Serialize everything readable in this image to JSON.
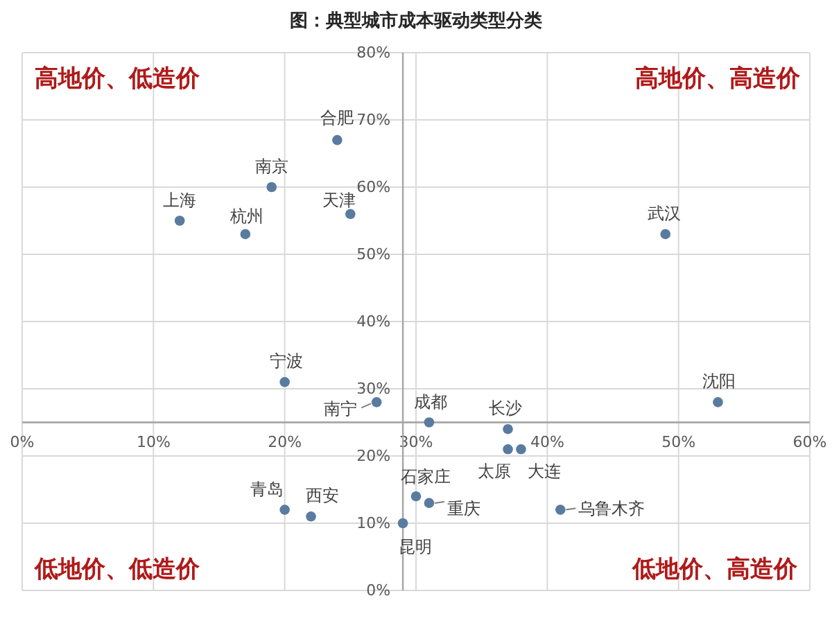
{
  "chart_data": {
    "type": "scatter",
    "title": "图：典型城市成本驱动类型分类",
    "series": [
      {
        "name": "上海",
        "color": "#5a7ba0",
        "x": [
          12
        ],
        "values": [
          55
        ]
      },
      {
        "name": "杭州",
        "color": "#5a7ba0",
        "x": [
          17
        ],
        "values": [
          53
        ]
      },
      {
        "name": "南京",
        "color": "#5a7ba0",
        "x": [
          19
        ],
        "values": [
          60
        ]
      },
      {
        "name": "合肥",
        "color": "#5a7ba0",
        "x": [
          24
        ],
        "values": [
          67
        ]
      },
      {
        "name": "天津",
        "color": "#5a7ba0",
        "x": [
          25
        ],
        "values": [
          56
        ]
      },
      {
        "name": "宁波",
        "color": "#5a7ba0",
        "x": [
          20
        ],
        "values": [
          31
        ]
      },
      {
        "name": "南宁",
        "color": "#5a7ba0",
        "x": [
          27
        ],
        "values": [
          28
        ]
      },
      {
        "name": "成都",
        "color": "#5a7ba0",
        "x": [
          31
        ],
        "values": [
          25
        ]
      },
      {
        "name": "长沙",
        "color": "#5a7ba0",
        "x": [
          37
        ],
        "values": [
          24
        ]
      },
      {
        "name": "武汉",
        "color": "#5a7ba0",
        "x": [
          49
        ],
        "values": [
          53
        ]
      },
      {
        "name": "沈阳",
        "color": "#5a7ba0",
        "x": [
          53
        ],
        "values": [
          28
        ]
      },
      {
        "name": "太原",
        "color": "#5a7ba0",
        "x": [
          37
        ],
        "values": [
          21
        ]
      },
      {
        "name": "大连",
        "color": "#5a7ba0",
        "x": [
          38
        ],
        "values": [
          21
        ]
      },
      {
        "name": "石家庄",
        "color": "#5a7ba0",
        "x": [
          30
        ],
        "values": [
          14
        ]
      },
      {
        "name": "重庆",
        "color": "#5a7ba0",
        "x": [
          31
        ],
        "values": [
          13
        ]
      },
      {
        "name": "昆明",
        "color": "#5a7ba0",
        "x": [
          29
        ],
        "values": [
          10
        ]
      },
      {
        "name": "乌鲁木齐",
        "color": "#5a7ba0",
        "x": [
          41
        ],
        "values": [
          12
        ]
      },
      {
        "name": "青岛",
        "color": "#5a7ba0",
        "x": [
          20
        ],
        "values": [
          12
        ]
      },
      {
        "name": "西安",
        "color": "#5a7ba0",
        "x": [
          22
        ],
        "values": [
          11
        ]
      }
    ],
    "xlim": [
      0,
      60
    ],
    "xticks": [
      {
        "value": 0,
        "label": "0%"
      },
      {
        "value": 10,
        "label": "10%"
      },
      {
        "value": 20,
        "label": "20%"
      },
      {
        "value": 30,
        "label": "30%"
      },
      {
        "value": 40,
        "label": "40%"
      },
      {
        "value": 50,
        "label": "50%"
      },
      {
        "value": 60,
        "label": "60%"
      }
    ],
    "ylim": [
      0,
      80
    ],
    "yticks": [
      {
        "value": 0,
        "label": "0%"
      },
      {
        "value": 10,
        "label": "10%"
      },
      {
        "value": 20,
        "label": "20%"
      },
      {
        "value": 30,
        "label": "30%"
      },
      {
        "value": 40,
        "label": "40%"
      },
      {
        "value": 50,
        "label": "50%"
      },
      {
        "value": 60,
        "label": "60%"
      },
      {
        "value": 70,
        "label": "70%"
      },
      {
        "value": 80,
        "label": "80%"
      }
    ],
    "grid": true,
    "marker": "circle",
    "legend": false,
    "ref_lines": [
      {
        "axis": "x",
        "value": 29,
        "color": "#a6a6a6"
      },
      {
        "axis": "y",
        "value": 25,
        "color": "#a6a6a6"
      }
    ],
    "annotations": [
      "高地价、低造价",
      "高地价、高造价",
      "低地价、低造价",
      "低地价、高造价"
    ]
  }
}
